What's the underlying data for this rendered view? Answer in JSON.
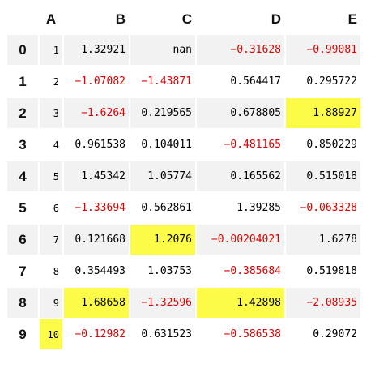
{
  "colors": {
    "negative": "#dd0000",
    "positive": "#000000",
    "highlight": "#fcfc48",
    "stripe": "#f2f2f2"
  },
  "header": {
    "corner": "",
    "cols": [
      "A",
      "B",
      "C",
      "D",
      "E"
    ]
  },
  "rows": [
    {
      "index": "0",
      "A": "1",
      "B": "1.32921",
      "C": "nan",
      "D": "−0.31628",
      "E": "−0.99081"
    },
    {
      "index": "1",
      "A": "2",
      "B": "−1.07082",
      "C": "−1.43871",
      "D": "0.564417",
      "E": "0.295722"
    },
    {
      "index": "2",
      "A": "3",
      "B": "−1.6264",
      "C": "0.219565",
      "D": "0.678805",
      "E": "1.88927"
    },
    {
      "index": "3",
      "A": "4",
      "B": "0.961538",
      "C": "0.104011",
      "D": "−0.481165",
      "E": "0.850229"
    },
    {
      "index": "4",
      "A": "5",
      "B": "1.45342",
      "C": "1.05774",
      "D": "0.165562",
      "E": "0.515018"
    },
    {
      "index": "5",
      "A": "6",
      "B": "−1.33694",
      "C": "0.562861",
      "D": "1.39285",
      "E": "−0.063328"
    },
    {
      "index": "6",
      "A": "7",
      "B": "0.121668",
      "C": "1.2076",
      "D": "−0.00204021",
      "E": "1.6278"
    },
    {
      "index": "7",
      "A": "8",
      "B": "0.354493",
      "C": "1.03753",
      "D": "−0.385684",
      "E": "0.519818"
    },
    {
      "index": "8",
      "A": "9",
      "B": "1.68658",
      "C": "−1.32596",
      "D": "1.42898",
      "E": "−2.08935"
    },
    {
      "index": "9",
      "A": "10",
      "B": "−0.12982",
      "C": "0.631523",
      "D": "−0.586538",
      "E": "0.29072"
    }
  ],
  "highlighted": {
    "A": "9",
    "B": "8",
    "C": "6",
    "D": "8",
    "E": "2"
  }
}
